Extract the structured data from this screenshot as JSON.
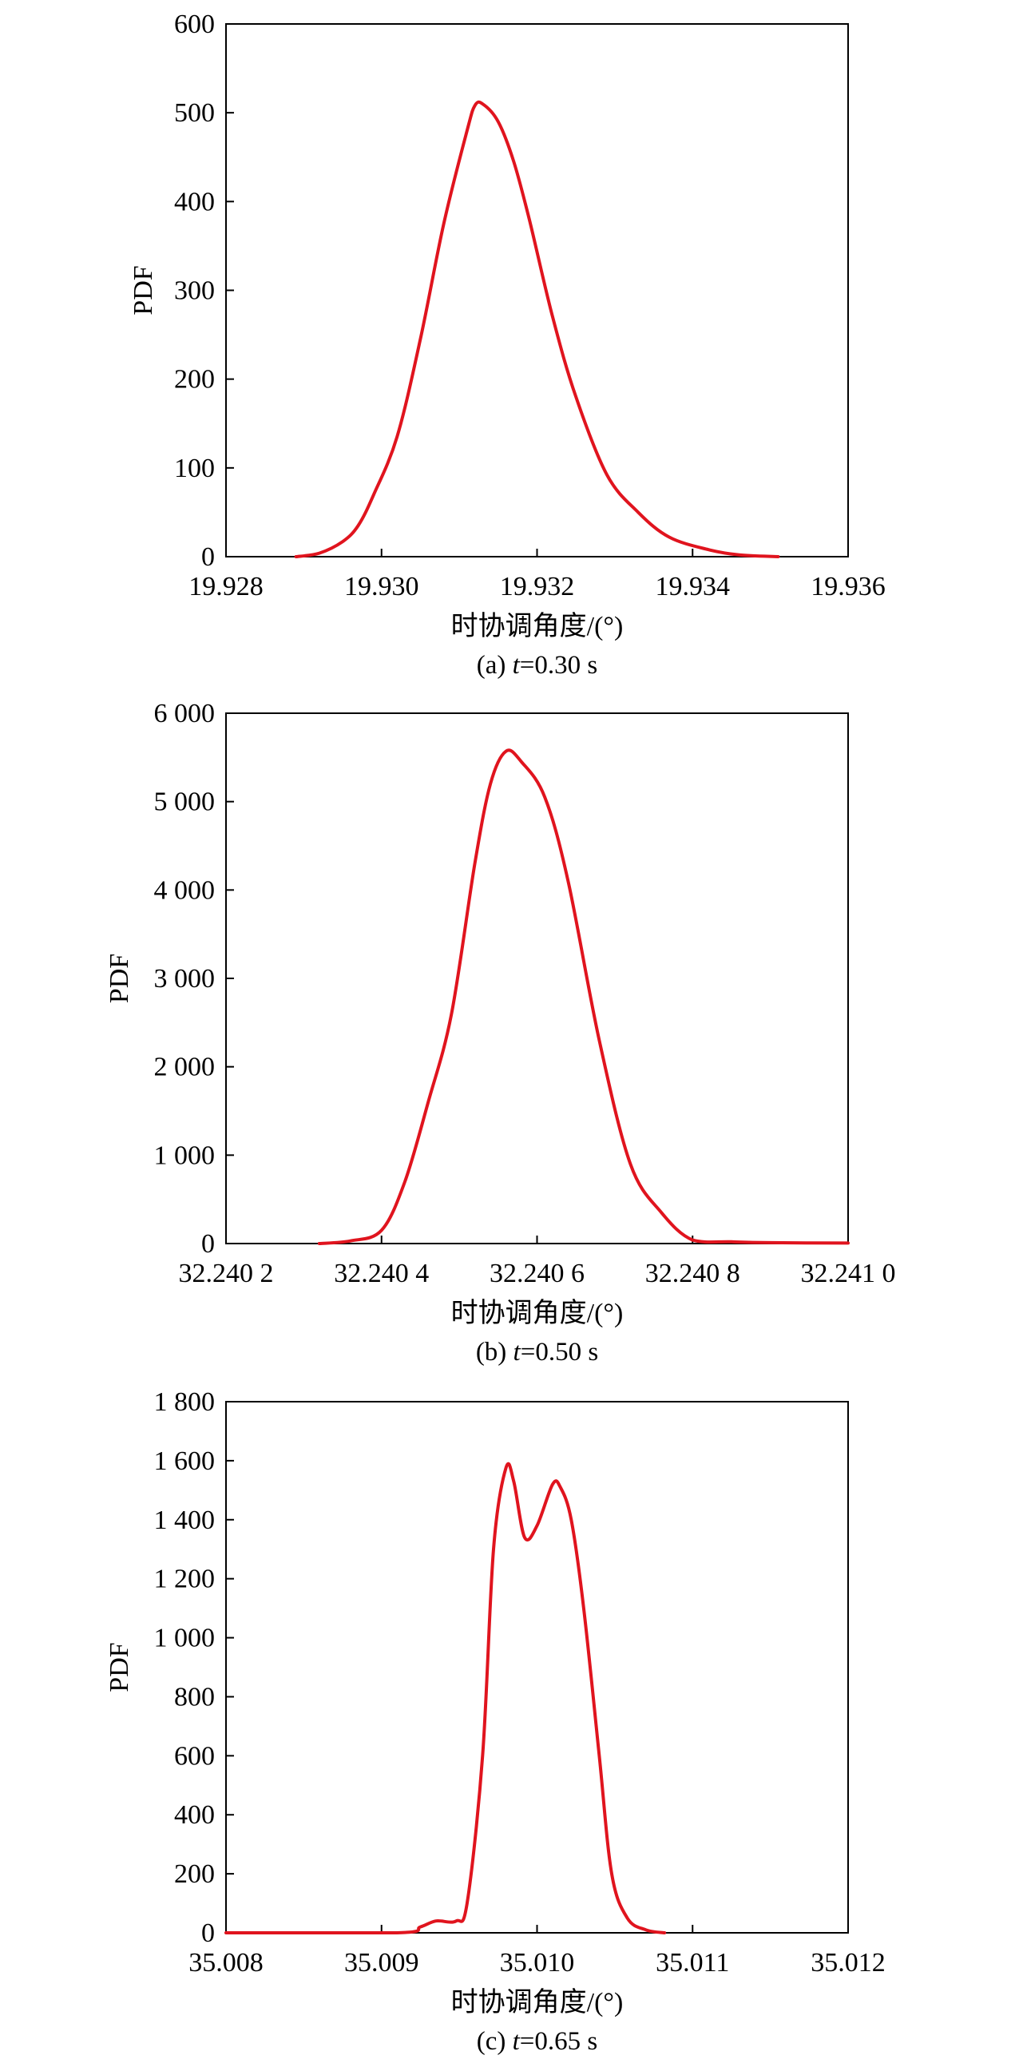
{
  "chart_data": [
    {
      "type": "line",
      "caption_prefix": "(a) ",
      "caption_var": "t",
      "caption_suffix": "=0.30 s",
      "xlabel": "时协调角度/(°)",
      "ylabel": "PDF",
      "xlim": [
        19.928,
        19.936
      ],
      "ylim": [
        0,
        600
      ],
      "x_ticks": [
        19.928,
        19.93,
        19.932,
        19.934,
        19.936
      ],
      "x_tick_labels": [
        "19.928",
        "19.930",
        "19.932",
        "19.934",
        "19.936"
      ],
      "y_ticks": [
        0,
        100,
        200,
        300,
        400,
        500,
        600
      ],
      "y_tick_labels": [
        "0",
        "100",
        "200",
        "300",
        "400",
        "500",
        "600"
      ],
      "line_color": "#e0141e",
      "grid": false,
      "series": [
        {
          "x": [
            19.9289,
            19.9292,
            19.9295,
            19.9297,
            19.9299,
            19.9302,
            19.9305,
            19.9308,
            19.9311,
            19.9312,
            19.9313,
            19.9315,
            19.9317,
            19.9319,
            19.9322,
            19.9325,
            19.9329,
            19.9333,
            19.9337,
            19.9342,
            19.9346,
            19.9351
          ],
          "y": [
            0,
            4,
            17,
            35,
            70,
            135,
            245,
            375,
            480,
            508,
            510,
            490,
            445,
            380,
            270,
            180,
            92,
            50,
            22,
            8,
            2,
            0
          ]
        }
      ]
    },
    {
      "type": "line",
      "caption_prefix": "(b) ",
      "caption_var": "t",
      "caption_suffix": "=0.50 s",
      "xlabel": "时协调角度/(°)",
      "ylabel": "PDF",
      "xlim": [
        32.2402,
        32.241
      ],
      "ylim": [
        0,
        6000
      ],
      "x_ticks": [
        32.2402,
        32.2404,
        32.2406,
        32.2408,
        32.241
      ],
      "x_tick_labels": [
        "32.240 2",
        "32.240 4",
        "32.240 6",
        "32.240 8",
        "32.241 0"
      ],
      "y_ticks": [
        0,
        1000,
        2000,
        3000,
        4000,
        5000,
        6000
      ],
      "y_tick_labels": [
        "0",
        "1 000",
        "2 000",
        "3 000",
        "4 000",
        "5 000",
        "6 000"
      ],
      "line_color": "#e0141e",
      "grid": false,
      "series": [
        {
          "x": [
            32.24032,
            32.24036,
            32.2404,
            32.24043,
            32.24046,
            32.24049,
            32.24052,
            32.24054,
            32.24056,
            32.24058,
            32.24061,
            32.24064,
            32.24068,
            32.24072,
            32.24076,
            32.2408,
            32.24085,
            32.2409,
            32.241
          ],
          "y": [
            0,
            30,
            150,
            700,
            1600,
            2600,
            4300,
            5200,
            5570,
            5450,
            5050,
            4100,
            2300,
            900,
            350,
            40,
            20,
            10,
            5
          ]
        }
      ]
    },
    {
      "type": "line",
      "caption_prefix": "(c) ",
      "caption_var": "t",
      "caption_suffix": "=0.65 s",
      "xlabel": "时协调角度/(°)",
      "ylabel": "PDF",
      "xlim": [
        35.008,
        35.012
      ],
      "ylim": [
        0,
        1800
      ],
      "x_ticks": [
        35.008,
        35.009,
        35.01,
        35.011,
        35.012
      ],
      "x_tick_labels": [
        "35.008",
        "35.009",
        "35.010",
        "35.011",
        "35.012"
      ],
      "y_ticks": [
        0,
        200,
        400,
        600,
        800,
        1000,
        1200,
        1400,
        1600,
        1800
      ],
      "y_tick_labels": [
        "0",
        "200",
        "400",
        "600",
        "800",
        "1 000",
        "1 200",
        "1 400",
        "1 600",
        "1 800"
      ],
      "line_color": "#e0141e",
      "grid": false,
      "series": [
        {
          "x": [
            35.008,
            35.0091,
            35.00925,
            35.00935,
            35.00948,
            35.00955,
            35.00965,
            35.00972,
            35.0098,
            35.00985,
            35.00992,
            35.01,
            35.0101,
            35.01015,
            35.01022,
            35.0103,
            35.0104,
            35.01048,
            35.01058,
            35.0107,
            35.01082
          ],
          "y": [
            0,
            0,
            20,
            40,
            40,
            100,
            600,
            1300,
            1575,
            1530,
            1340,
            1380,
            1520,
            1510,
            1400,
            1100,
            600,
            200,
            50,
            10,
            0
          ]
        }
      ]
    }
  ]
}
